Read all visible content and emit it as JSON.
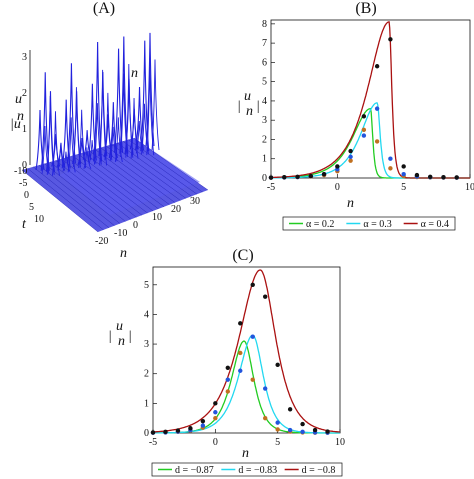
{
  "panels": [
    {
      "label": "(A)",
      "type": "surface3d",
      "zlabel": "|u n|",
      "xlabel": "n",
      "ylabel": "t",
      "z_ticks": [
        0,
        1,
        2,
        3
      ],
      "t_ticks": [
        -10,
        -5,
        0,
        5,
        10
      ],
      "n_ticks": [
        -20,
        -10,
        0,
        10,
        20,
        30
      ],
      "color": "#2222dd"
    }
  ],
  "chart_data": [
    {
      "panel": "(B)",
      "type": "line",
      "xlabel": "n",
      "ylabel": "|u n|",
      "xlim": [
        -5,
        10
      ],
      "ylim": [
        0,
        8.2
      ],
      "x_ticks": [
        -5,
        0,
        5,
        10
      ],
      "y_ticks": [
        0,
        1,
        2,
        3,
        4,
        5,
        6,
        7,
        8
      ],
      "legend_position": "bottom",
      "series": [
        {
          "name": "α = 0.2",
          "color": "#22cc22",
          "peak_x": 2.5,
          "peak_y": 3.6,
          "left_width": 1.2,
          "right_width": 0.15,
          "markers": [
            [
              -5,
              0.02
            ],
            [
              -4,
              0.03
            ],
            [
              -3,
              0.05
            ],
            [
              -2,
              0.08
            ],
            [
              -1,
              0.15
            ],
            [
              0,
              0.35
            ],
            [
              1,
              0.9
            ],
            [
              2,
              2.5
            ],
            [
              3,
              1.9
            ],
            [
              4,
              0.5
            ],
            [
              5,
              0.1
            ],
            [
              6,
              0.05
            ],
            [
              7,
              0.03
            ],
            [
              8,
              0.02
            ],
            [
              9,
              0.02
            ]
          ],
          "marker_color": "#c07020"
        },
        {
          "name": "α = 0.3",
          "color": "#22d8f0",
          "peak_x": 3.0,
          "peak_y": 3.9,
          "left_width": 1.1,
          "right_width": 0.2,
          "markers": [
            [
              -5,
              0.02
            ],
            [
              -4,
              0.03
            ],
            [
              -3,
              0.05
            ],
            [
              -2,
              0.1
            ],
            [
              -1,
              0.2
            ],
            [
              0,
              0.45
            ],
            [
              1,
              1.1
            ],
            [
              2,
              2.2
            ],
            [
              3,
              3.6
            ],
            [
              4,
              1.0
            ],
            [
              5,
              0.2
            ],
            [
              6,
              0.08
            ],
            [
              7,
              0.04
            ],
            [
              8,
              0.03
            ],
            [
              9,
              0.02
            ]
          ],
          "marker_color": "#2255dd"
        },
        {
          "name": "α = 0.4",
          "color": "#aa1111",
          "peak_x": 3.9,
          "peak_y": 8.1,
          "left_width": 1.4,
          "right_width": 0.18,
          "markers": [
            [
              -5,
              0.02
            ],
            [
              -4,
              0.04
            ],
            [
              -3,
              0.06
            ],
            [
              -2,
              0.1
            ],
            [
              -1,
              0.2
            ],
            [
              0,
              0.6
            ],
            [
              1,
              1.4
            ],
            [
              2,
              3.2
            ],
            [
              3,
              5.8
            ],
            [
              4,
              7.2
            ],
            [
              5,
              0.6
            ],
            [
              6,
              0.15
            ],
            [
              7,
              0.06
            ],
            [
              8,
              0.04
            ],
            [
              9,
              0.03
            ]
          ],
          "marker_color": "#111111"
        }
      ]
    },
    {
      "panel": "(C)",
      "type": "line",
      "xlabel": "n",
      "ylabel": "|u n|",
      "xlim": [
        -5,
        10
      ],
      "ylim": [
        0,
        5.6
      ],
      "x_ticks": [
        -5,
        0,
        5,
        10
      ],
      "y_ticks": [
        0,
        1,
        2,
        3,
        4,
        5
      ],
      "legend_position": "bottom",
      "series": [
        {
          "name": "d = −0.87",
          "color": "#22cc22",
          "peak_x": 2.3,
          "peak_y": 3.1,
          "left_width": 0.9,
          "right_width": 0.7,
          "markers": [
            [
              -5,
              0.01
            ],
            [
              -4,
              0.02
            ],
            [
              -3,
              0.04
            ],
            [
              -2,
              0.08
            ],
            [
              -1,
              0.18
            ],
            [
              0,
              0.5
            ],
            [
              1,
              1.4
            ],
            [
              2,
              2.7
            ],
            [
              3,
              1.8
            ],
            [
              4,
              0.5
            ],
            [
              5,
              0.12
            ],
            [
              6,
              0.05
            ],
            [
              7,
              0.02
            ],
            [
              8,
              0.01
            ],
            [
              9,
              0.01
            ]
          ],
          "marker_color": "#c07020"
        },
        {
          "name": "d = −0.83",
          "color": "#22d8f0",
          "peak_x": 3.0,
          "peak_y": 3.3,
          "left_width": 1.0,
          "right_width": 0.75,
          "markers": [
            [
              -5,
              0.01
            ],
            [
              -4,
              0.02
            ],
            [
              -3,
              0.05
            ],
            [
              -2,
              0.1
            ],
            [
              -1,
              0.25
            ],
            [
              0,
              0.7
            ],
            [
              1,
              1.8
            ],
            [
              2,
              2.1
            ],
            [
              3,
              3.25
            ],
            [
              4,
              1.5
            ],
            [
              5,
              0.35
            ],
            [
              6,
              0.1
            ],
            [
              7,
              0.04
            ],
            [
              8,
              0.02
            ],
            [
              9,
              0.01
            ]
          ],
          "marker_color": "#2255dd"
        },
        {
          "name": "d = −0.8",
          "color": "#aa1111",
          "peak_x": 3.6,
          "peak_y": 5.5,
          "left_width": 1.5,
          "right_width": 1.1,
          "markers": [
            [
              -5,
              0.02
            ],
            [
              -4,
              0.04
            ],
            [
              -3,
              0.08
            ],
            [
              -2,
              0.16
            ],
            [
              -1,
              0.4
            ],
            [
              0,
              1.0
            ],
            [
              1,
              2.2
            ],
            [
              2,
              3.7
            ],
            [
              3,
              5.0
            ],
            [
              4,
              4.6
            ],
            [
              5,
              2.3
            ],
            [
              6,
              0.8
            ],
            [
              7,
              0.3
            ],
            [
              8,
              0.1
            ],
            [
              9,
              0.05
            ]
          ],
          "marker_color": "#111111"
        }
      ]
    }
  ]
}
